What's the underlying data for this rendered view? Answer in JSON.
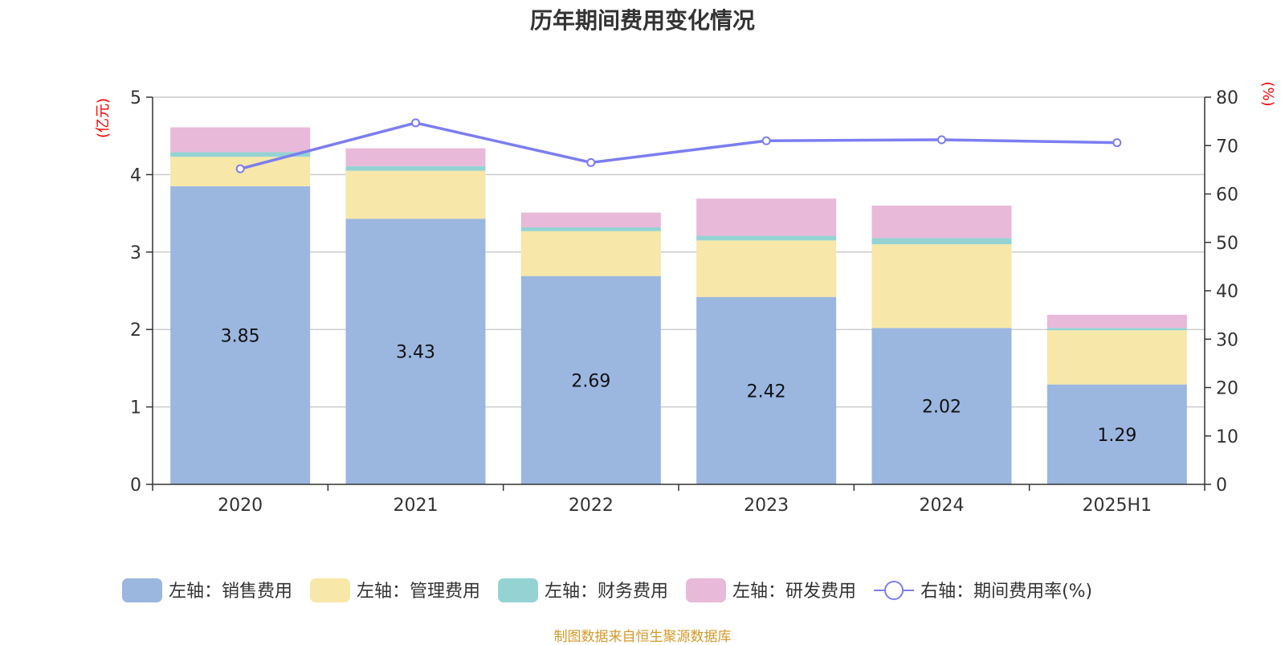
{
  "title": "历年期间费用变化情况",
  "source": "制图数据来自恒生聚源数据库",
  "chart_data": {
    "type": "bar",
    "stacked": true,
    "categories": [
      "2020",
      "2021",
      "2022",
      "2023",
      "2024",
      "2025H1"
    ],
    "left_axis": {
      "unit": "(亿元)",
      "ylim": [
        0,
        5
      ],
      "ticks": [
        "0",
        "1",
        "2",
        "3",
        "4",
        "5"
      ]
    },
    "right_axis": {
      "unit": "(%)",
      "ylim": [
        0,
        80
      ],
      "ticks": [
        "0",
        "10",
        "20",
        "30",
        "40",
        "50",
        "60",
        "70",
        "80"
      ]
    },
    "grid": true,
    "legend_position": "bottom",
    "series": [
      {
        "name": "左轴：销售费用",
        "axis": "left",
        "type": "bar",
        "color": "#9bb7e0",
        "values": [
          3.85,
          3.43,
          2.69,
          2.42,
          2.02,
          1.29
        ],
        "labels": [
          "3.85",
          "3.43",
          "2.69",
          "2.42",
          "2.02",
          "1.29"
        ]
      },
      {
        "name": "左轴：管理费用",
        "axis": "left",
        "type": "bar",
        "color": "#f7e7a8",
        "values": [
          0.38,
          0.62,
          0.58,
          0.73,
          1.08,
          0.7
        ]
      },
      {
        "name": "左轴：财务费用",
        "axis": "left",
        "type": "bar",
        "color": "#95d3d3",
        "values": [
          0.06,
          0.06,
          0.05,
          0.06,
          0.08,
          0.03
        ]
      },
      {
        "name": "左轴：研发费用",
        "axis": "left",
        "type": "bar",
        "color": "#e8b9d9",
        "values": [
          0.32,
          0.23,
          0.19,
          0.48,
          0.42,
          0.17
        ]
      },
      {
        "name": "右轴：期间费用率(%)",
        "axis": "right",
        "type": "line",
        "color": "#7b7ef0",
        "values": [
          65.2,
          74.7,
          66.5,
          71.0,
          71.2,
          70.6
        ]
      }
    ]
  }
}
